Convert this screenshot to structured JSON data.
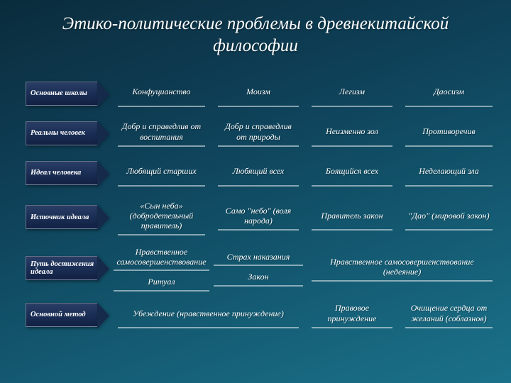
{
  "title": "Этико-политические проблемы в древнекитайской философии",
  "colors": {
    "arrow_fill": "#1b2e55",
    "arrow_border": "rgba(255,255,255,0.35)",
    "underline": "rgba(255,255,255,0.5)",
    "text": "#ffffff"
  },
  "rowLabels": [
    "Основные школы",
    "Реальны человек",
    "Идеал человека",
    "Источник идеала",
    "Путь достижения идеала",
    "Основной метод"
  ],
  "header": {
    "c1": "Конфуцианство",
    "c2": "Моизм",
    "c3": "Легизм",
    "c4": "Даосизм"
  },
  "row2": {
    "c1": "Добр и справедлив от воспитания",
    "c2": "Добр и справедлив от природы",
    "c3": "Неизменно зол",
    "c4": "Противоречив"
  },
  "row3": {
    "c1": "Любящий старших",
    "c2": "Любящий всех",
    "c3": "Боящийся всех",
    "c4": "Неделающий зла"
  },
  "row4": {
    "c12": "«Сын неба» (добродетельный правитель)",
    "c2": "Само \"небо\" (воля народа)",
    "c3": "Правитель закон",
    "c4": "\"Дао\" (мировой закон)"
  },
  "row5": {
    "top_left": "Нравственное самосовершенствование",
    "bottom_left": "Ритуал",
    "c2_top": "Страх наказания",
    "c2_bottom": "Закон",
    "c4": "Нравственное самосовершенствование (недеяние)"
  },
  "row6": {
    "c12": "Убеждение (нравственное принуждение)",
    "c3": "Правовое принуждение",
    "c4": "Очищение сердца от желаний (соблазнов)"
  }
}
